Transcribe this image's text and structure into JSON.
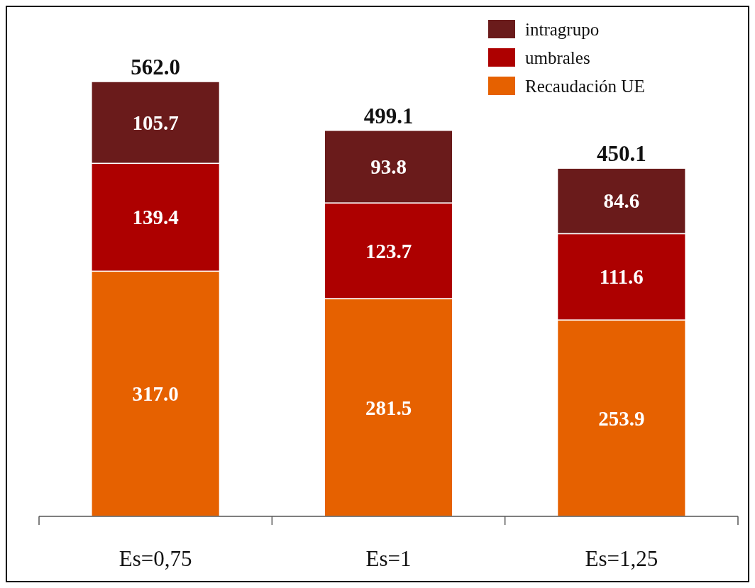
{
  "chart_data": {
    "type": "bar",
    "stacked": true,
    "categories": [
      "Es=0,75",
      "Es=1",
      "Es=1,25"
    ],
    "series": [
      {
        "name": "Recaudación UE",
        "color": "#e66100",
        "values": [
          317.0,
          281.5,
          253.9
        ],
        "value_labels": [
          "317.0",
          "281.5",
          "253.9"
        ]
      },
      {
        "name": "umbrales",
        "color": "#ad0000",
        "values": [
          139.4,
          123.7,
          111.6
        ],
        "value_labels": [
          "139.4",
          "123.7",
          "111.6"
        ]
      },
      {
        "name": "intragrupo",
        "color": "#6a1b1b",
        "values": [
          105.7,
          93.8,
          84.6
        ],
        "value_labels": [
          "105.7",
          "93.8",
          "84.6"
        ]
      }
    ],
    "totals": [
      "562.0",
      "499.1",
      "450.1"
    ],
    "legend": "top right"
  }
}
